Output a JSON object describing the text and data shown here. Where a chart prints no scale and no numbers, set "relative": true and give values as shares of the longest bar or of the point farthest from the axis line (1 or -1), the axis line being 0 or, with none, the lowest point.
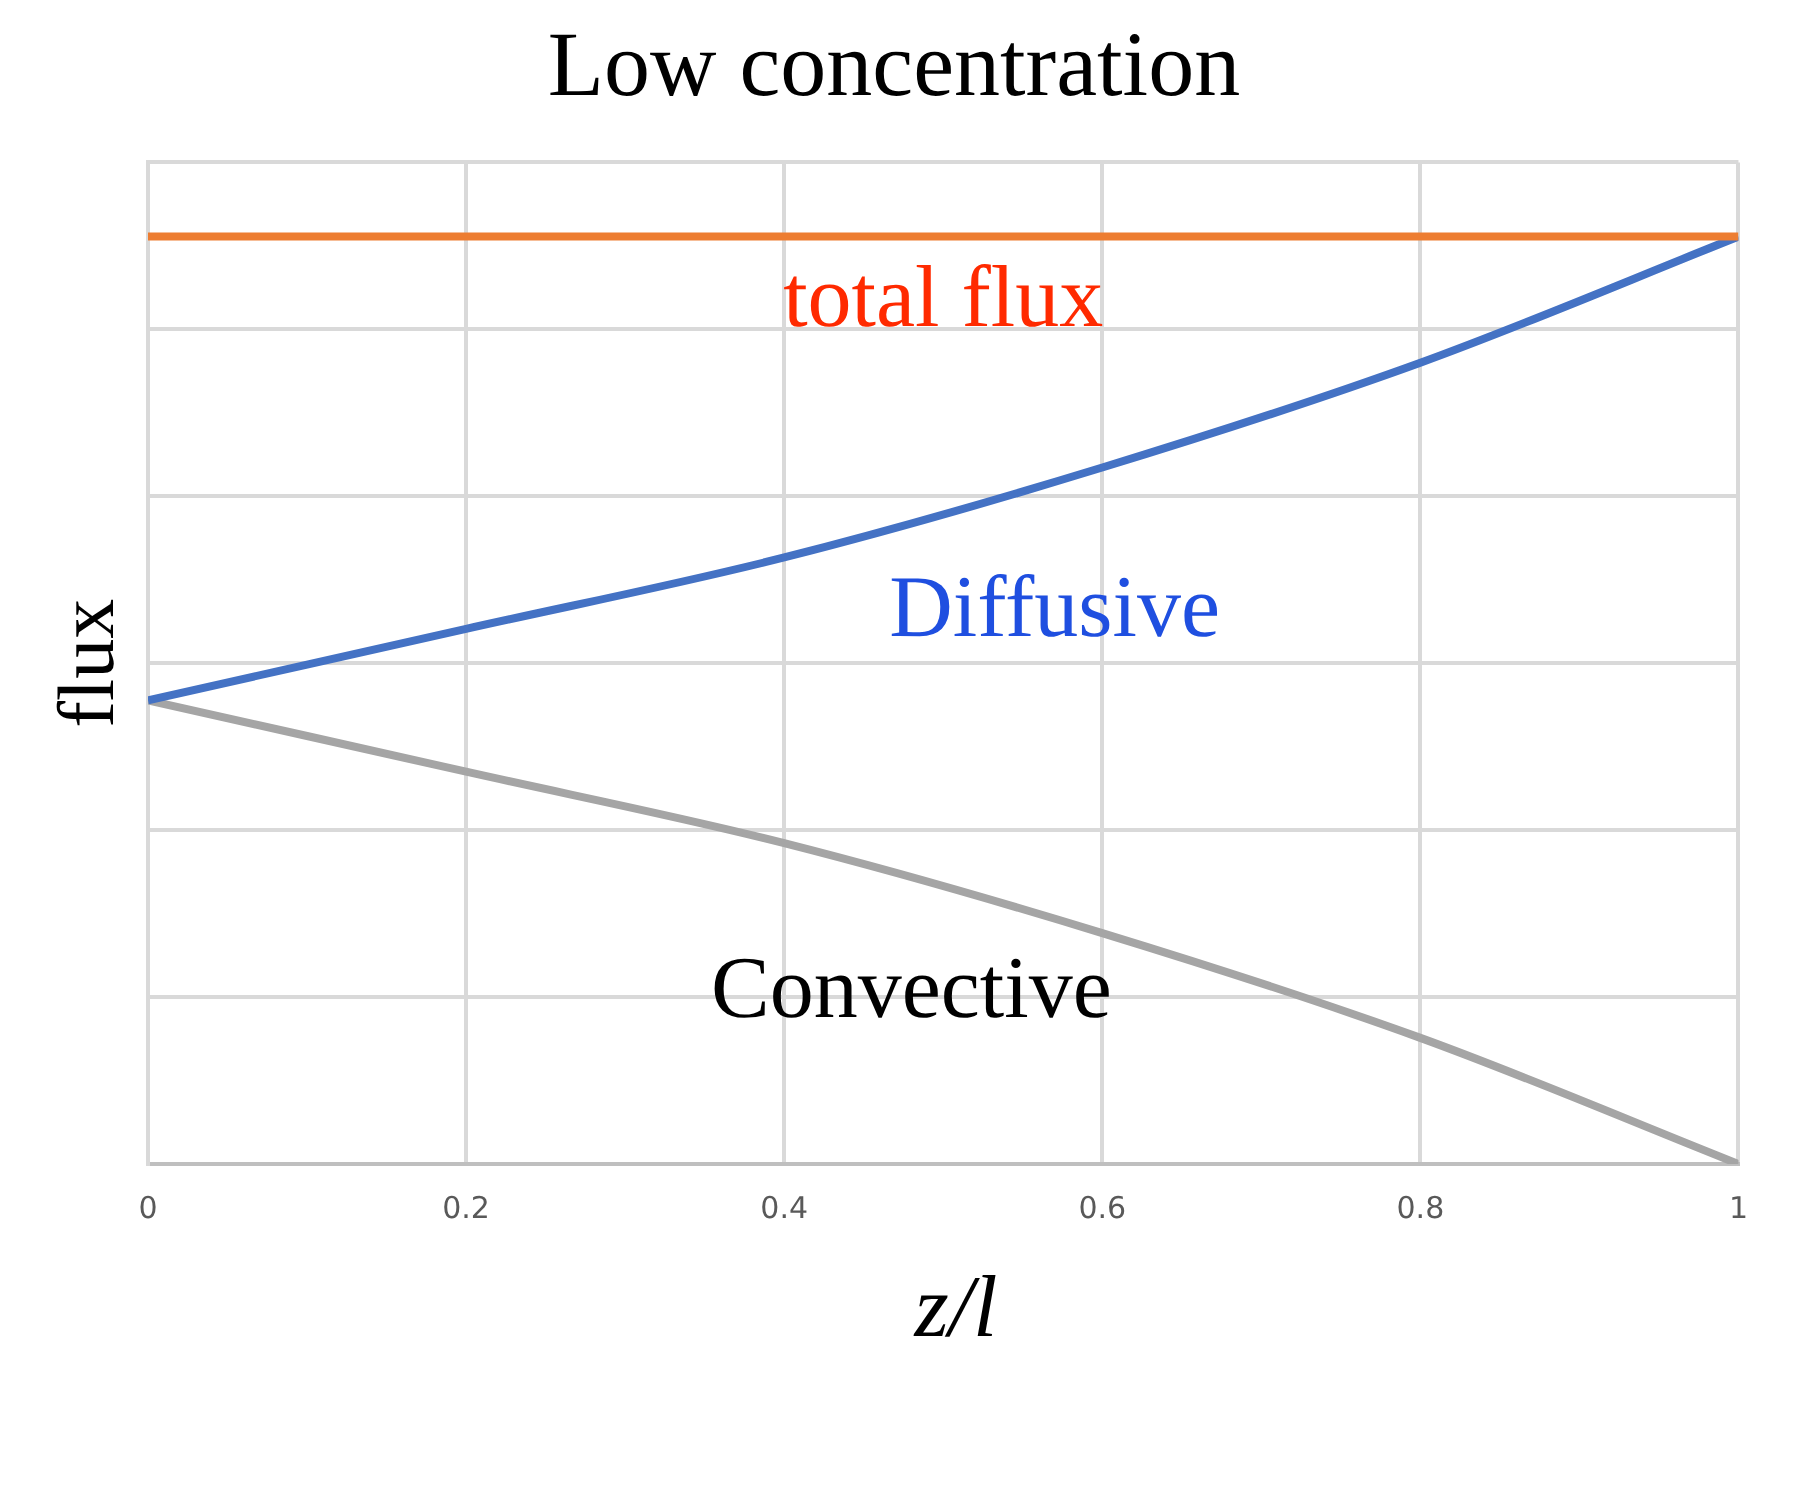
{
  "chart_data": {
    "type": "line",
    "title": "Low concentration",
    "xlabel": "z/l",
    "ylabel": "flux",
    "relative": true,
    "x": [
      0,
      0.2,
      0.4,
      0.6,
      0.8,
      1
    ],
    "xlim": [
      0,
      1
    ],
    "xticks": [
      0,
      0.2,
      0.4,
      0.6,
      0.8,
      1
    ],
    "grid": true,
    "legend": false,
    "marker": "none",
    "tick_labels": "x",
    "series": [
      {
        "color": "#ed7d31",
        "values": [
          1,
          1,
          1,
          1,
          1,
          1
        ]
      },
      {
        "color": "#4472c4",
        "values": [
          0.5,
          0.577,
          0.654,
          0.751,
          0.864,
          1
        ]
      },
      {
        "color": "#a5a5a5",
        "values": [
          0.5,
          0.423,
          0.346,
          0.249,
          0.136,
          0
        ]
      }
    ],
    "annotations": [
      "total flux",
      "Diffusive",
      "Convective"
    ]
  }
}
